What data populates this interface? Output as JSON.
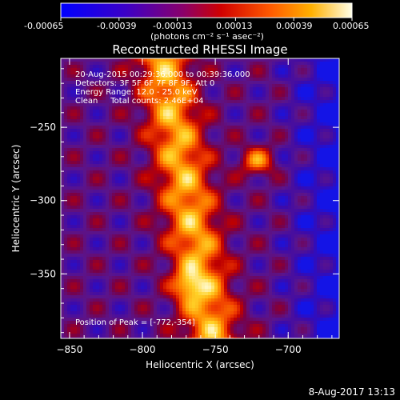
{
  "colorbar": {
    "ticks": [
      "-0.00065",
      "-0.00039",
      "-0.00013",
      "0.00013",
      "0.00039",
      "0.00065"
    ],
    "unit_label": "(photons cm⁻² s⁻¹ asec⁻²)",
    "range": [
      -0.00065,
      0.00065
    ]
  },
  "title": "Reconstructed RHESSI Image",
  "info": {
    "line1": "20-Aug-2015 00:29:36.000 to 00:39:36.000",
    "line2": "Detectors: 3F 5F 6F 7F 8F 9F, Att 0",
    "line3": "Energy Range: 12.0 - 25.0 keV",
    "line4": "Clean     Total counts: 2.46E+04",
    "peak": "Position of Peak = [-772,-354]"
  },
  "footer": {
    "timestamp": "8-Aug-2017 13:13"
  },
  "colors": {
    "background": "#000000",
    "text": "#ffffff"
  },
  "chart_data": {
    "type": "heatmap",
    "title": "Reconstructed RHESSI Image",
    "xlabel": "Heliocentric X (arcsec)",
    "ylabel": "Heliocentric Y (arcsec)",
    "xlim": [
      -856,
      -665
    ],
    "ylim": [
      -394,
      -203
    ],
    "xticks": [
      {
        "value": -850,
        "label": "−850"
      },
      {
        "value": -800,
        "label": "−800"
      },
      {
        "value": -750,
        "label": "−750"
      },
      {
        "value": -700,
        "label": "−700"
      }
    ],
    "yticks": [
      {
        "value": -250,
        "label": "−250"
      },
      {
        "value": -300,
        "label": "−300"
      },
      {
        "value": -350,
        "label": "−350"
      }
    ],
    "colormap": "blue-purple-red-yellow-white",
    "peak_position": [
      -772,
      -354
    ],
    "grid": false
  }
}
